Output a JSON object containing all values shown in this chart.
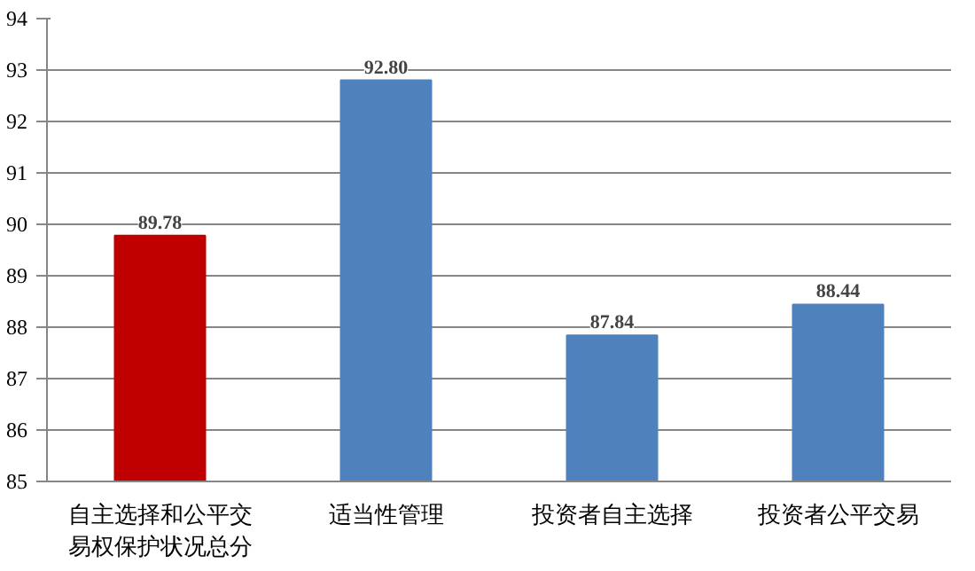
{
  "chart_data": {
    "type": "bar",
    "categories": [
      "自主选择和公平交易权保护状况总分",
      "适当性管理",
      "投资者自主选择",
      "投资者公平交易"
    ],
    "values": [
      89.78,
      92.8,
      87.84,
      88.44
    ],
    "colors": [
      "#c00000",
      "#4f81bd",
      "#4f81bd",
      "#4f81bd"
    ],
    "value_labels": [
      "89.78",
      "92.80",
      "87.84",
      "88.44"
    ],
    "ylim": [
      85,
      94
    ],
    "yticks": [
      85,
      86,
      87,
      88,
      89,
      90,
      91,
      92,
      93,
      94
    ],
    "grid": "y"
  }
}
